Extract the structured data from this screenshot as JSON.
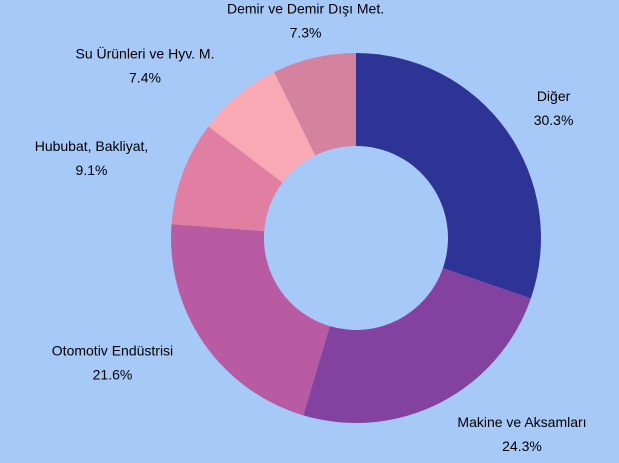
{
  "chart_data": {
    "type": "donut",
    "categories": [
      "Diğer",
      "Makine ve Aksamları",
      "Otomotiv Endüstrisi",
      "Hububat, Bakliyat,",
      "Su Ürünleri ve Hyv. M.",
      "Demir ve Demir Dışı Met."
    ],
    "values": [
      30.3,
      24.3,
      21.6,
      9.1,
      7.4,
      7.3
    ],
    "value_labels": [
      "30.3%",
      "24.3%",
      "21.6%",
      "9.1%",
      "7.4%",
      "7.3%"
    ],
    "colors": [
      "#2e3396",
      "#8342a0",
      "#b95ba2",
      "#e07fa2",
      "#f9a9b3",
      "#d5829f"
    ]
  }
}
